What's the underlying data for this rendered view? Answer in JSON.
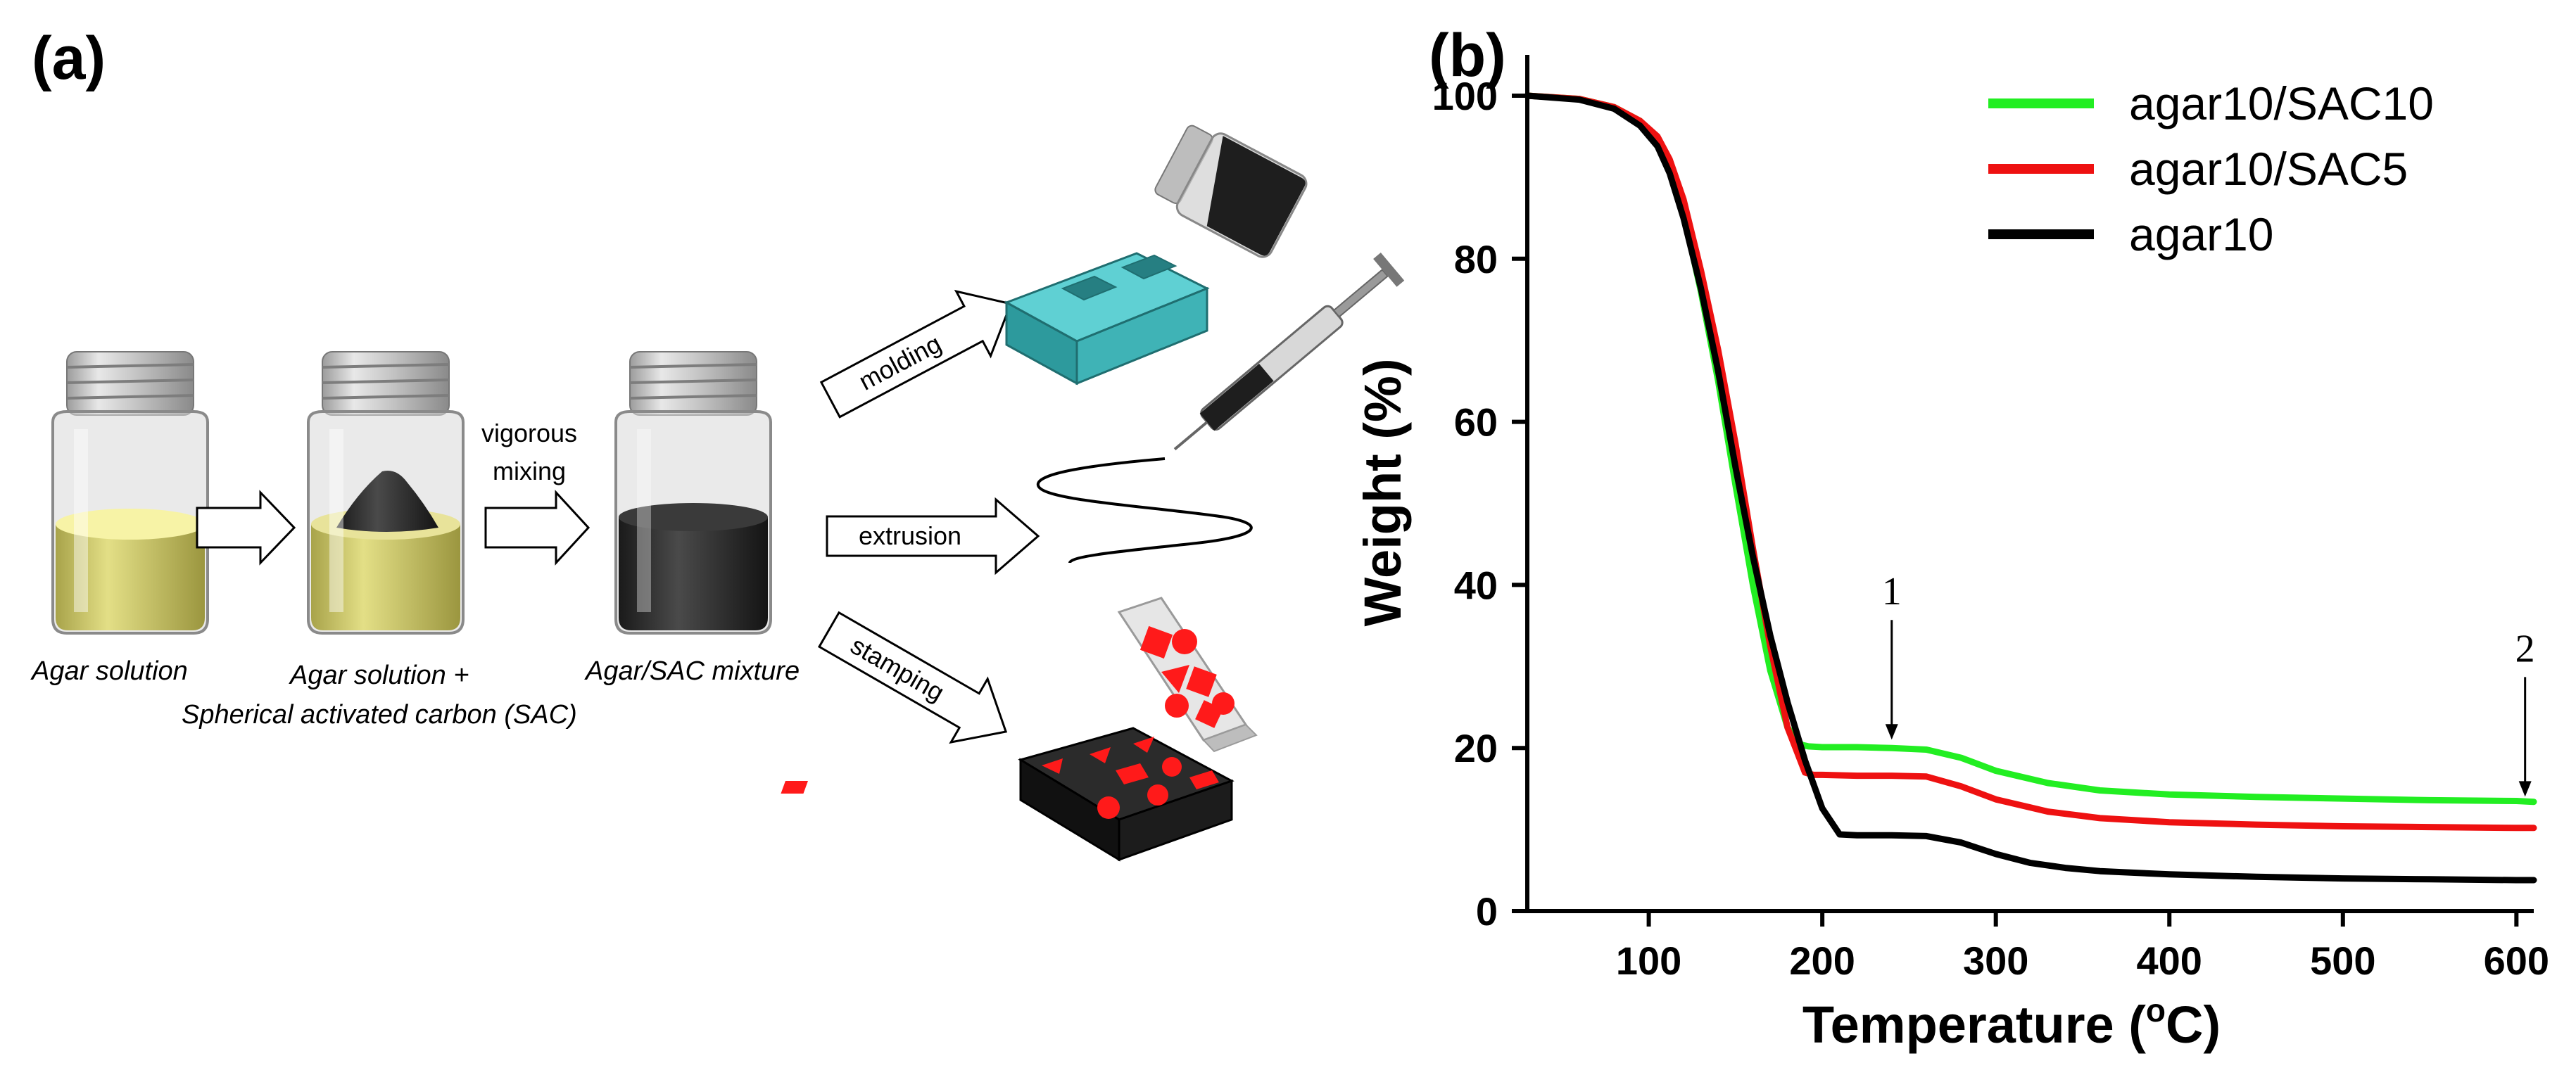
{
  "panel_a": {
    "label": "(a)",
    "captions": {
      "agar_solution": "Agar solution",
      "agar_sac_line1": "Agar solution +",
      "agar_sac_line2": "Spherical activated carbon (SAC)",
      "mixture": "Agar/SAC mixture"
    },
    "mixing_label_line1": "vigorous",
    "mixing_label_line2": "mixing",
    "methods": {
      "molding": "molding",
      "extrusion": "extrusion",
      "stamping": "stamping"
    },
    "colors": {
      "agar": "#e3df86",
      "carbon": "#2b2b2b",
      "mold": "#3fb3b6",
      "stamp": "#ff1a1a"
    }
  },
  "panel_b": {
    "label": "(b)",
    "annotation_1": "1",
    "annotation_2": "2"
  },
  "chart_data": {
    "type": "line",
    "title": "",
    "xlabel": "Temperature (°C)",
    "xlabel_main": "Temperature (",
    "xlabel_sup": "o",
    "xlabel_end": "C)",
    "ylabel": "Weight (%)",
    "xlim": [
      30,
      610
    ],
    "ylim": [
      0,
      105
    ],
    "xticks": [
      100,
      200,
      300,
      400,
      500,
      600
    ],
    "yticks": [
      0,
      20,
      40,
      60,
      80,
      100
    ],
    "grid": false,
    "legend_position": "top-right",
    "annotations": [
      {
        "text": "1",
        "x": 240,
        "y": 20
      },
      {
        "text": "2",
        "x": 605,
        "y": 13
      }
    ],
    "series": [
      {
        "name": "agar10/SAC10",
        "color": "#22ee22",
        "x": [
          30,
          60,
          80,
          95,
          105,
          112,
          120,
          130,
          140,
          150,
          160,
          170,
          180,
          188,
          192,
          200,
          220,
          240,
          260,
          280,
          300,
          330,
          360,
          400,
          450,
          500,
          550,
          600,
          610
        ],
        "y": [
          100,
          99.6,
          98.6,
          96.9,
          94.8,
          91.5,
          85.6,
          76,
          65,
          52.2,
          40,
          29.5,
          22.5,
          20.4,
          20.2,
          20.1,
          20.1,
          20.0,
          19.8,
          18.8,
          17.2,
          15.7,
          14.8,
          14.3,
          14.0,
          13.8,
          13.6,
          13.5,
          13.4
        ]
      },
      {
        "name": "agar10/SAC5",
        "color": "#ee1111",
        "x": [
          30,
          60,
          80,
          95,
          105,
          112,
          120,
          130,
          140,
          150,
          160,
          170,
          180,
          190,
          195,
          200,
          220,
          240,
          260,
          280,
          300,
          330,
          360,
          400,
          450,
          500,
          550,
          600,
          610
        ],
        "y": [
          100,
          99.6,
          98.6,
          96.9,
          95,
          92.2,
          87.3,
          78.6,
          68.8,
          57.3,
          44.5,
          32.5,
          22.5,
          17,
          16.7,
          16.7,
          16.6,
          16.6,
          16.5,
          15.3,
          13.7,
          12.2,
          11.4,
          10.9,
          10.6,
          10.4,
          10.3,
          10.2,
          10.2
        ]
      },
      {
        "name": "agar10",
        "color": "#000000",
        "x": [
          30,
          60,
          80,
          95,
          105,
          112,
          120,
          130,
          140,
          150,
          160,
          170,
          180,
          190,
          200,
          210,
          220,
          240,
          260,
          280,
          300,
          320,
          340,
          360,
          400,
          450,
          500,
          550,
          600,
          610
        ],
        "y": [
          100,
          99.5,
          98.4,
          96.3,
          93.8,
          90.5,
          85,
          76.4,
          66.2,
          54.4,
          43.5,
          33.8,
          25.6,
          18.5,
          12.6,
          9.4,
          9.3,
          9.3,
          9.2,
          8.4,
          7,
          5.9,
          5.3,
          4.9,
          4.5,
          4.2,
          4.0,
          3.9,
          3.8,
          3.8
        ]
      }
    ]
  }
}
